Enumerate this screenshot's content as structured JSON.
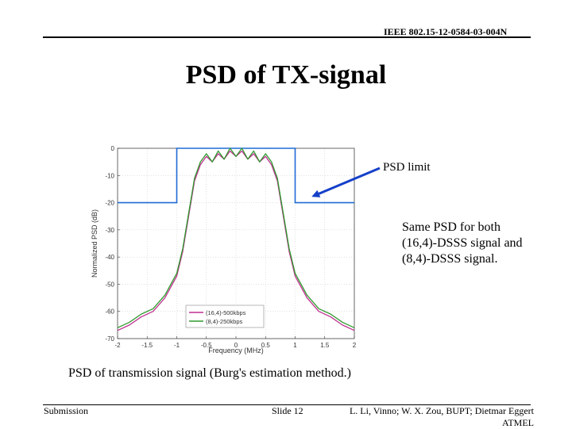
{
  "header": {
    "doc_id": "IEEE 802.15-12-0584-03-004N"
  },
  "slide": {
    "title": "PSD of TX-signal",
    "psd_limit_label": "PSD limit",
    "note_lines": [
      "Same PSD for both",
      "(16,4)-DSSS signal and",
      "(8,4)-DSSS signal."
    ],
    "caption": "PSD of transmission signal (Burg's estimation method.)"
  },
  "footer": {
    "left": "Submission",
    "center": "Slide 12",
    "right_line1": "L. Li, Vinno; W. X. Zou, BUPT; Dietmar Eggert",
    "right_line2": "ATMEL"
  },
  "colors": {
    "limit": "#1f6bd6",
    "series1": "#c0318f",
    "series2": "#2f9a2f",
    "arrow": "#1540c8"
  },
  "chart_data": {
    "type": "line",
    "xlabel": "Frequency (MHz)",
    "ylabel": "Normalized PSD (dB)",
    "xlim": [
      -2,
      2
    ],
    "ylim": [
      -70,
      0
    ],
    "xticks": [
      -2,
      -1.5,
      -1,
      -0.5,
      0,
      0.5,
      1,
      1.5,
      2
    ],
    "xtick_labels": [
      "-2",
      "-1.5",
      "-1",
      "-0.5",
      "0",
      "0.5",
      "1",
      "1.5",
      "2"
    ],
    "yticks": [
      0,
      -10,
      -20,
      -30,
      -40,
      -50,
      -60,
      -70
    ],
    "ytick_labels": [
      "0",
      "-10",
      "-20",
      "-30",
      "-40",
      "-50",
      "-60",
      "-70"
    ],
    "grid": true,
    "legend_position": "bottom-left",
    "psd_limit": {
      "x": [
        -2,
        -1,
        -1,
        1,
        1,
        2
      ],
      "y": [
        -20,
        -20,
        0,
        0,
        -20,
        -20
      ]
    },
    "series": [
      {
        "name": "(16,4)-500kbps",
        "x": [
          -2,
          -1.8,
          -1.6,
          -1.4,
          -1.2,
          -1.0,
          -0.9,
          -0.8,
          -0.7,
          -0.6,
          -0.5,
          -0.4,
          -0.3,
          -0.2,
          -0.1,
          0,
          0.1,
          0.2,
          0.3,
          0.4,
          0.5,
          0.6,
          0.7,
          0.8,
          0.9,
          1.0,
          1.2,
          1.4,
          1.6,
          1.8,
          2
        ],
        "y": [
          -67,
          -65,
          -62,
          -60,
          -55,
          -47,
          -38,
          -25,
          -12,
          -6,
          -3,
          -5,
          -2,
          -4,
          -1,
          -3,
          -1,
          -4,
          -2,
          -5,
          -3,
          -6,
          -12,
          -25,
          -38,
          -47,
          -55,
          -60,
          -62,
          -65,
          -67
        ]
      },
      {
        "name": "(8,4)-250kbps",
        "x": [
          -2,
          -1.8,
          -1.6,
          -1.4,
          -1.2,
          -1.0,
          -0.9,
          -0.8,
          -0.7,
          -0.6,
          -0.5,
          -0.4,
          -0.3,
          -0.2,
          -0.1,
          0,
          0.1,
          0.2,
          0.3,
          0.4,
          0.5,
          0.6,
          0.7,
          0.8,
          0.9,
          1.0,
          1.2,
          1.4,
          1.6,
          1.8,
          2
        ],
        "y": [
          -66,
          -64,
          -61,
          -59,
          -54,
          -46,
          -37,
          -24,
          -11,
          -5,
          -2,
          -5,
          -1,
          -4,
          0,
          -3,
          0,
          -4,
          -1,
          -5,
          -2,
          -5,
          -11,
          -24,
          -37,
          -46,
          -54,
          -59,
          -61,
          -64,
          -66
        ]
      }
    ]
  }
}
